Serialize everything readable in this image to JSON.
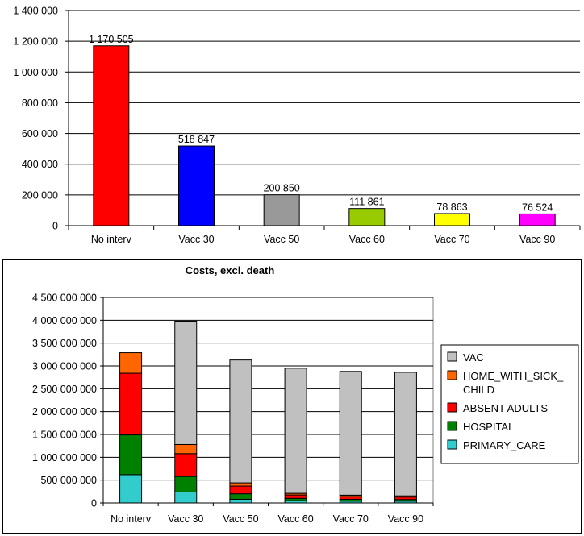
{
  "chart_data": [
    {
      "type": "bar",
      "categories": [
        "No interv",
        "Vacc 30",
        "Vacc 50",
        "Vacc 60",
        "Vacc 70",
        "Vacc 90"
      ],
      "values": [
        1170505,
        518847,
        200850,
        111861,
        78863,
        76524
      ],
      "value_labels": [
        "1 170 505",
        "518 847",
        "200 850",
        "111 861",
        "78 863",
        "76 524"
      ],
      "colors": [
        "#ff0000",
        "#0000ff",
        "#999999",
        "#99cc00",
        "#ffff00",
        "#ff00ff"
      ],
      "ylim": [
        0,
        1400000
      ],
      "yticks": [
        0,
        200000,
        400000,
        600000,
        800000,
        1000000,
        1200000,
        1400000
      ],
      "ytick_labels": [
        "0",
        "200 000",
        "400 000",
        "600 000",
        "800 000",
        "1 000 000",
        "1 200 000",
        "1 400 000"
      ],
      "grid": true,
      "title": "",
      "xlabel": "",
      "ylabel": ""
    },
    {
      "type": "bar",
      "stacked": true,
      "title": "Costs, excl. death",
      "categories": [
        "No interv",
        "Vacc 30",
        "Vacc 50",
        "Vacc 60",
        "Vacc 70",
        "Vacc 90"
      ],
      "series": [
        {
          "name": "PRIMARY_CARE",
          "color": "#33cccc",
          "values": [
            620000000,
            240000000,
            80000000,
            50000000,
            40000000,
            40000000
          ]
        },
        {
          "name": "HOSPITAL",
          "color": "#008000",
          "values": [
            870000000,
            340000000,
            120000000,
            50000000,
            40000000,
            35000000
          ]
        },
        {
          "name": "ABSENT ADULTS",
          "color": "#ff0000",
          "values": [
            1350000000,
            500000000,
            170000000,
            75000000,
            60000000,
            55000000
          ]
        },
        {
          "name": "HOME_WITH_SICK_\nCHILD",
          "color": "#ff6600",
          "values": [
            450000000,
            200000000,
            70000000,
            35000000,
            30000000,
            25000000
          ]
        },
        {
          "name": "VAC",
          "color": "#c0c0c0",
          "values": [
            0,
            2700000000,
            2690000000,
            2740000000,
            2710000000,
            2705000000
          ]
        }
      ],
      "ylim": [
        0,
        4500000000
      ],
      "yticks": [
        0,
        500000000,
        1000000000,
        1500000000,
        2000000000,
        2500000000,
        3000000000,
        3500000000,
        4000000000,
        4500000000
      ],
      "ytick_labels": [
        "0",
        "500 000 000",
        "1 000 000 000",
        "1 500 000 000",
        "2 000 000 000",
        "2 500 000 000",
        "3 000 000 000",
        "3 500 000 000",
        "4 000 000 000",
        "4 500 000 000"
      ],
      "legend": "right",
      "grid": true,
      "xlabel": "",
      "ylabel": ""
    }
  ]
}
